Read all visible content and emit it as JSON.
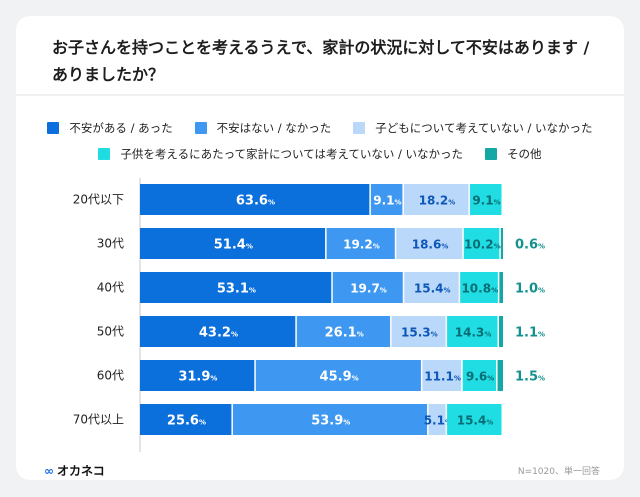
{
  "chart_data": {
    "type": "bar",
    "orientation": "horizontal",
    "stacked": true,
    "title": "お子さんを持つことを考えるうえで、家計の状況に対して不安はあります / ありましたか？",
    "categories": [
      "20代以下",
      "30代",
      "40代",
      "50代",
      "60代",
      "70代以上"
    ],
    "series": [
      {
        "name": "不安がある / あった",
        "color": "#0b6fdc",
        "values": [
          63.6,
          51.4,
          53.1,
          43.2,
          31.9,
          25.6
        ]
      },
      {
        "name": "不安はない / なかった",
        "color": "#3e98f1",
        "values": [
          9.1,
          19.2,
          19.7,
          26.1,
          45.9,
          53.9
        ]
      },
      {
        "name": "子どもについて考えていない / いなかった",
        "color": "#bad8f9",
        "values": [
          18.2,
          18.6,
          15.4,
          15.3,
          11.1,
          5.1
        ]
      },
      {
        "name": "子供を考えるにあたって家計については考えていない / いなかった",
        "color": "#1fdde2",
        "values": [
          9.1,
          10.2,
          10.8,
          14.3,
          9.6,
          15.4
        ]
      },
      {
        "name": "その他",
        "color": "#13a7a6",
        "values": [
          0,
          0.6,
          1.0,
          1.1,
          1.5,
          0
        ]
      }
    ],
    "unit": "%",
    "xlim": [
      0,
      100
    ],
    "legend": "top",
    "grid": false
  },
  "footer": {
    "logo": "オカネコ",
    "note": "N=1020、単一回答"
  }
}
